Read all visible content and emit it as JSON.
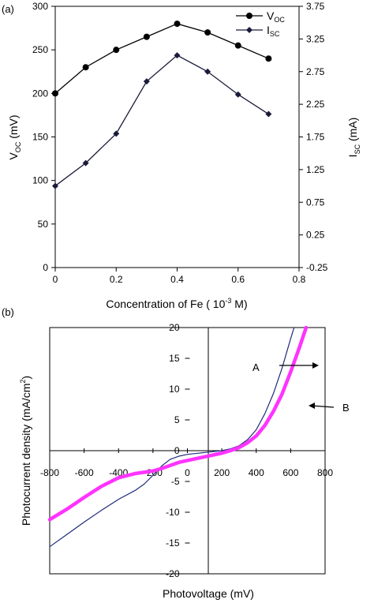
{
  "chart_data": [
    {
      "type": "line",
      "panel_label": "(a)",
      "xlabel_text": "Concentration of Fe ( 10",
      "xlabel_sup": "-3",
      "xlabel_unit": " M)",
      "ylabel_left_main": "V",
      "ylabel_left_sub": "OC",
      "ylabel_left_unit": " (mV)",
      "ylabel_right_main": "I",
      "ylabel_right_sub": "SC",
      "ylabel_right_unit": " (mA)",
      "xlim": [
        0,
        0.8
      ],
      "x_ticks": [
        "0",
        "0.2",
        "0.4",
        "0.6",
        "0.8"
      ],
      "ylim_left": [
        0,
        300
      ],
      "y_ticks_left": [
        "0",
        "50",
        "100",
        "150",
        "200",
        "250",
        "300"
      ],
      "ylim_right": [
        -0.25,
        3.75
      ],
      "y_ticks_right": [
        "-0.25",
        "0.25",
        "0.75",
        "1.25",
        "1.75",
        "2.25",
        "2.75",
        "3.25",
        "3.75"
      ],
      "grid": false,
      "legend_position": "top-right",
      "series": [
        {
          "name_main": "V",
          "name_sub": "OC",
          "axis": "left",
          "marker": "circle",
          "color": "#000000",
          "x": [
            0,
            0.1,
            0.2,
            0.3,
            0.4,
            0.5,
            0.6,
            0.7
          ],
          "y": [
            200,
            230,
            250,
            265,
            280,
            270,
            255,
            240
          ]
        },
        {
          "name_main": "I",
          "name_sub": "SC",
          "axis": "right",
          "marker": "diamond",
          "color": "#1a1a3a",
          "x": [
            0,
            0.1,
            0.2,
            0.3,
            0.4,
            0.5,
            0.6,
            0.7
          ],
          "y": [
            1.0,
            1.35,
            1.8,
            2.6,
            3.0,
            2.75,
            2.4,
            2.1
          ]
        }
      ]
    },
    {
      "type": "line",
      "panel_label": "(b)",
      "xlabel": "Photovoltage (mV)",
      "ylabel_text": "Photocurrent density (mA/cm",
      "ylabel_sup": "2",
      "ylabel_unit": ")",
      "xlim": [
        -800,
        800
      ],
      "x_ticks": [
        "-800",
        "-600",
        "-400",
        "-200",
        "0",
        "200",
        "400",
        "600",
        "800"
      ],
      "ylim": [
        -20,
        20
      ],
      "y_ticks": [
        "-20",
        "-15",
        "-10",
        "-5",
        "0",
        "5",
        "10",
        "15",
        "20"
      ],
      "grid": false,
      "series": [
        {
          "name": "A",
          "color": "#1f2a7a",
          "x": [
            -800,
            -700,
            -600,
            -500,
            -400,
            -300,
            -250,
            -200,
            -150,
            -100,
            -50,
            0,
            100,
            200,
            250,
            300,
            350,
            400,
            450,
            500,
            550,
            600,
            620
          ],
          "y": [
            -15.6,
            -13.6,
            -11.6,
            -9.7,
            -7.9,
            -6.4,
            -5.4,
            -4.0,
            -2.5,
            -1.4,
            -0.9,
            -0.6,
            -0.3,
            0.0,
            0.3,
            0.8,
            1.8,
            3.4,
            6.0,
            9.3,
            13.4,
            18.2,
            20.0
          ]
        },
        {
          "name": "B",
          "color": "#ff33ff",
          "x": [
            -800,
            -700,
            -600,
            -500,
            -400,
            -300,
            -200,
            -150,
            -100,
            -50,
            0,
            100,
            200,
            250,
            300,
            350,
            400,
            450,
            500,
            550,
            600,
            650,
            690
          ],
          "y": [
            -11.2,
            -9.5,
            -7.6,
            -5.8,
            -4.4,
            -3.7,
            -3.3,
            -2.9,
            -2.4,
            -1.9,
            -1.6,
            -1.0,
            -0.4,
            0.0,
            0.5,
            1.3,
            2.4,
            4.1,
            6.4,
            9.2,
            12.8,
            16.7,
            20.0
          ]
        }
      ],
      "annotations": [
        {
          "label": "A",
          "target": "curve-a",
          "arrow_to": [
            590,
            13.5
          ]
        },
        {
          "label": "B",
          "target": "curve-b",
          "arrow_to": [
            510,
            7.0
          ]
        }
      ]
    }
  ]
}
